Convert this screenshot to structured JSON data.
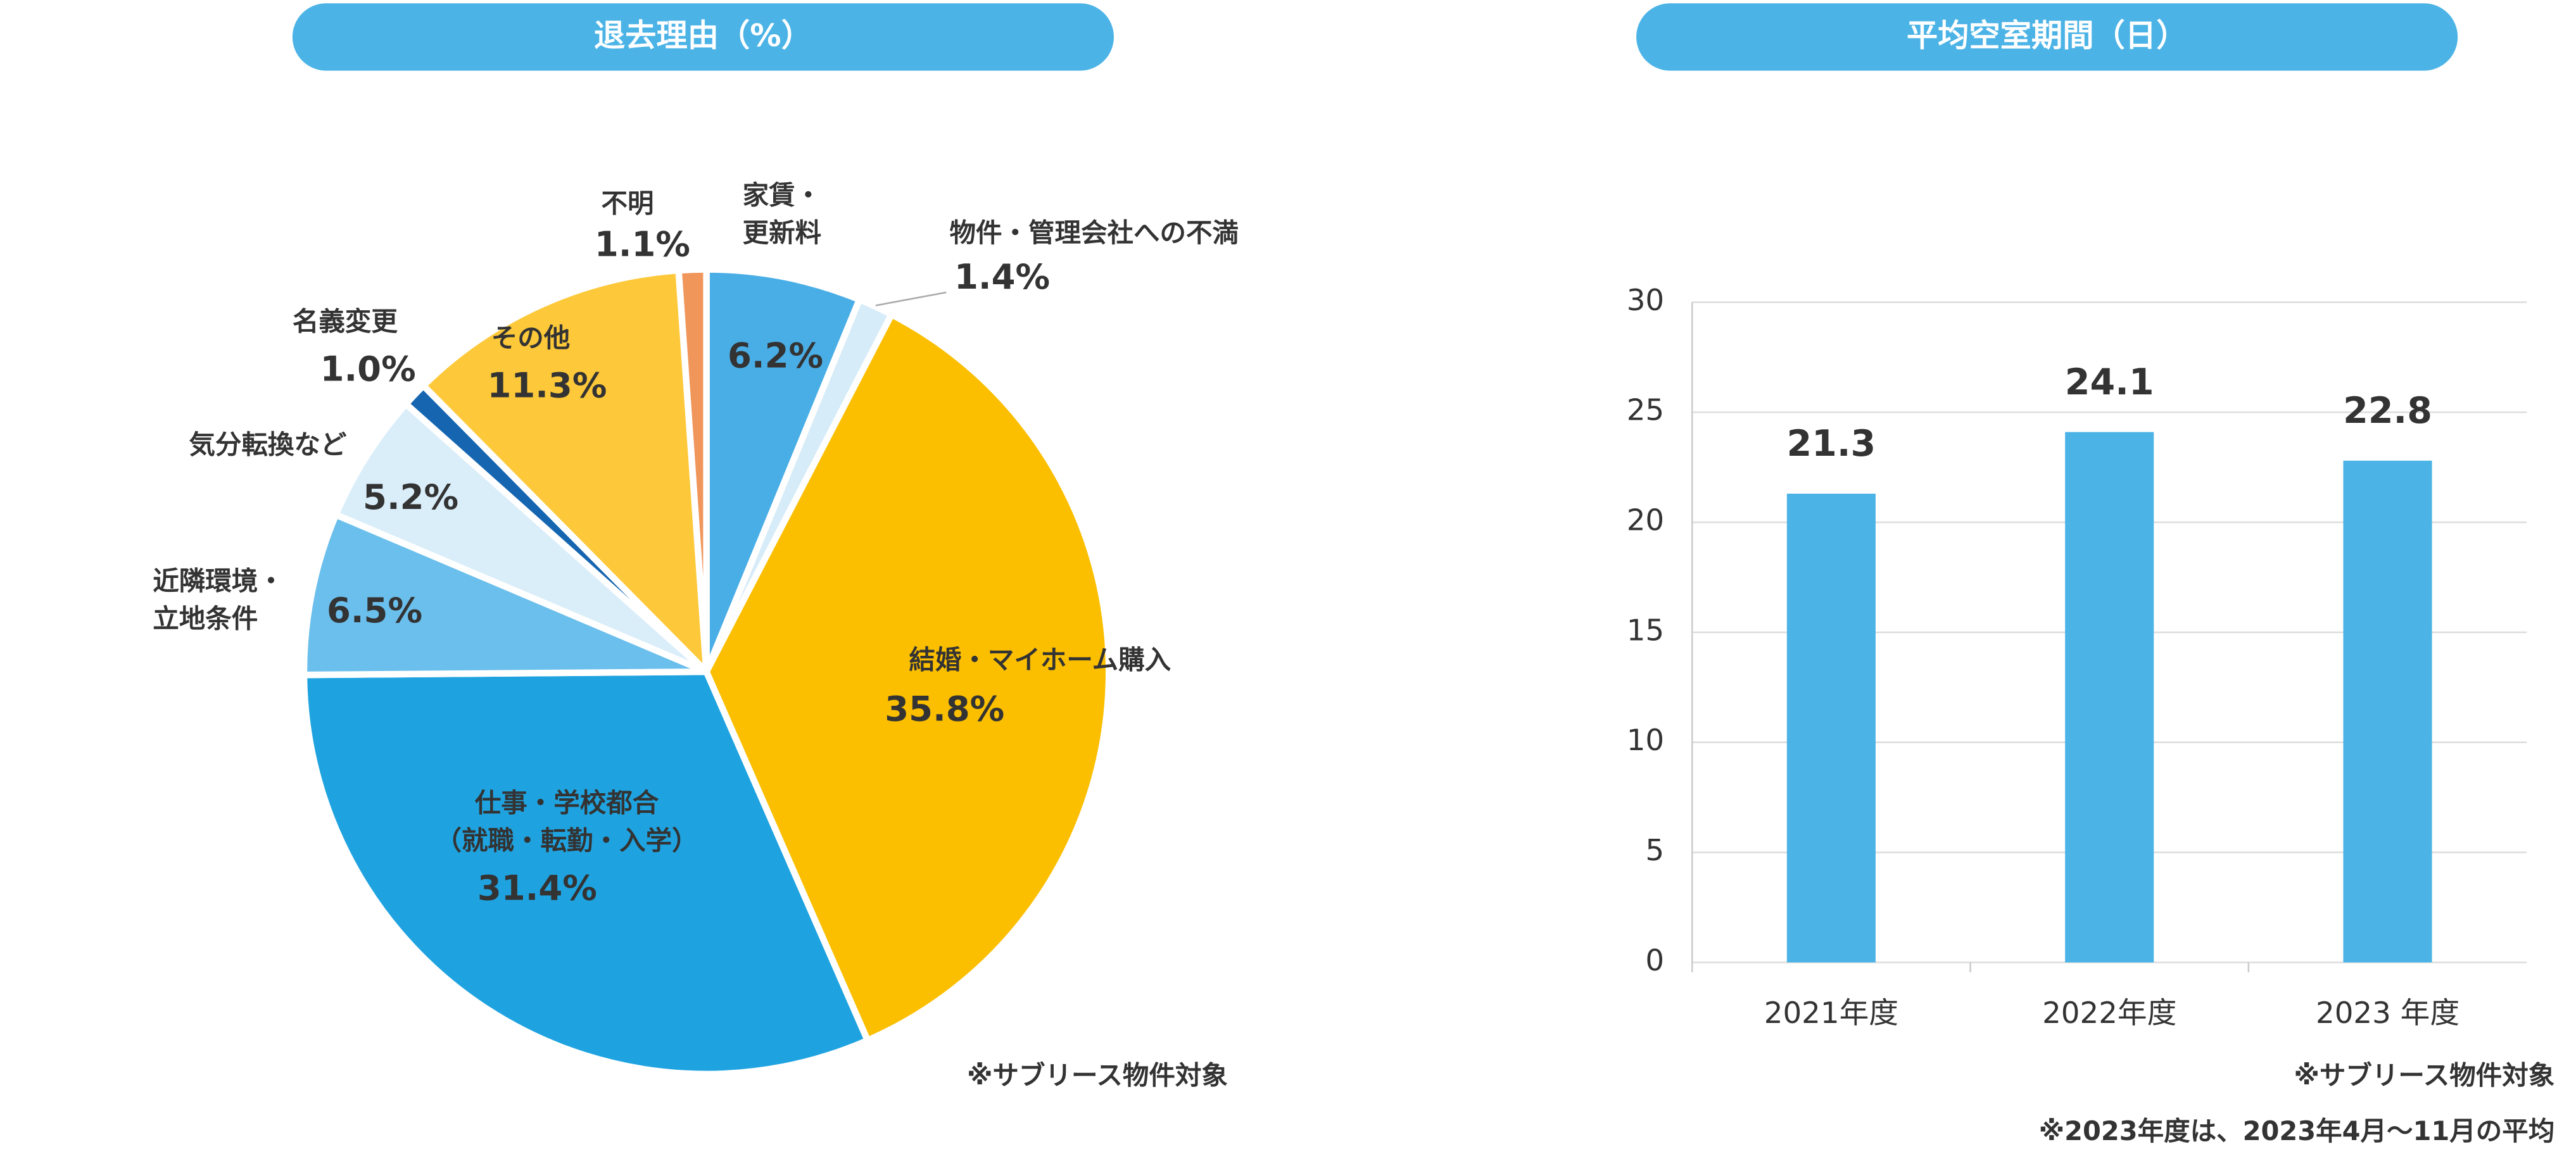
{
  "chart_data": [
    {
      "type": "pie",
      "title": "退去理由（%）",
      "categories": [
        [
          "家賃・",
          "更新料"
        ],
        [
          "物件・管理会社への不満"
        ],
        [
          "結婚・マイホーム購入"
        ],
        [
          "仕事・学校都合",
          "（就職・転勤・入学）"
        ],
        [
          "近隣環境・",
          "立地条件"
        ],
        [
          "気分転換など"
        ],
        [
          "名義変更"
        ],
        [
          "その他"
        ],
        [
          "不明"
        ]
      ],
      "values": [
        6.2,
        1.4,
        35.8,
        31.4,
        6.5,
        5.2,
        1.0,
        11.3,
        1.1
      ],
      "value_labels": [
        "6.2%",
        "1.4%",
        "35.8%",
        "31.4%",
        "6.5%",
        "5.2%",
        "1.0%",
        "11.3%",
        "1.1%"
      ],
      "colors": [
        "#4aaee6",
        "#d6ecf8",
        "#fbbf00",
        "#1fa3e0",
        "#6bbfec",
        "#daeefa",
        "#1565b0",
        "#fdc93a",
        "#f0965a"
      ],
      "notes": [
        "※サブリース物件対象"
      ]
    },
    {
      "type": "bar",
      "title": "平均空室期間（日）",
      "categories": [
        "2021年度",
        "2022年度",
        "2023 年度"
      ],
      "values": [
        21.3,
        24.1,
        22.8
      ],
      "color": "#4bb3e6",
      "ylim": [
        0,
        30
      ],
      "yticks": [
        0,
        5,
        10,
        15,
        20,
        25,
        30
      ],
      "grid": true,
      "notes": [
        "※サブリース物件対象",
        "※2023年度は、2023年4月～11月の平均"
      ]
    }
  ]
}
